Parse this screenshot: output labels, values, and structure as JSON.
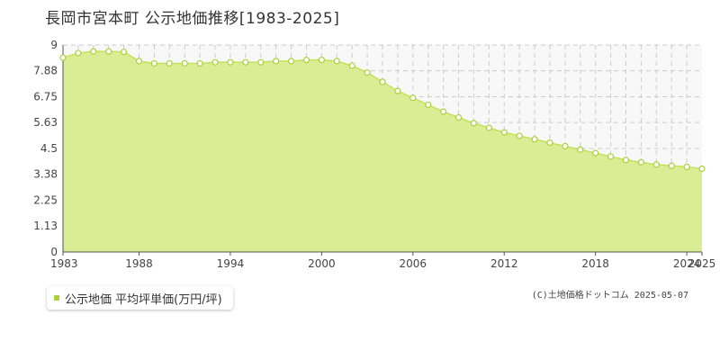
{
  "title": "長岡市宮本町 公示地価推移[1983-2025]",
  "legend": {
    "label": "公示地価 平均坪単価(万円/坪)"
  },
  "copyright": "(C)土地価格ドットコム 2025-05-07",
  "colors": {
    "fill": "#dbed94",
    "line": "#c5e15b",
    "marker": "#a8d13a",
    "grid": "#cccccc"
  },
  "chart_data": {
    "type": "area",
    "title": "長岡市宮本町 公示地価推移[1983-2025]",
    "xlabel": "",
    "ylabel": "",
    "xlim": [
      1983,
      2025
    ],
    "ylim": [
      0,
      9
    ],
    "grid": true,
    "legend_position": "bottom-left",
    "y_ticks": [
      "0",
      "1.13",
      "2.25",
      "3.38",
      "4.5",
      "5.63",
      "6.75",
      "7.88",
      "9"
    ],
    "x_ticks": [
      "1983",
      "1988",
      "1994",
      "2000",
      "2006",
      "2012",
      "2018",
      "2024",
      "2025"
    ],
    "series": [
      {
        "name": "公示地価 平均坪単価(万円/坪)",
        "x": [
          1983,
          1984,
          1985,
          1986,
          1987,
          1988,
          1989,
          1990,
          1991,
          1992,
          1993,
          1994,
          1995,
          1996,
          1997,
          1998,
          1999,
          2000,
          2001,
          2002,
          2003,
          2004,
          2005,
          2006,
          2007,
          2008,
          2009,
          2010,
          2011,
          2012,
          2013,
          2014,
          2015,
          2016,
          2017,
          2018,
          2019,
          2020,
          2021,
          2022,
          2023,
          2024,
          2025
        ],
        "values": [
          8.45,
          8.65,
          8.72,
          8.72,
          8.7,
          8.3,
          8.2,
          8.2,
          8.2,
          8.2,
          8.25,
          8.25,
          8.25,
          8.25,
          8.3,
          8.3,
          8.35,
          8.35,
          8.3,
          8.1,
          7.8,
          7.4,
          7.0,
          6.7,
          6.4,
          6.1,
          5.85,
          5.6,
          5.4,
          5.2,
          5.05,
          4.9,
          4.75,
          4.6,
          4.45,
          4.3,
          4.15,
          4.0,
          3.9,
          3.8,
          3.75,
          3.7,
          3.62
        ]
      }
    ]
  }
}
